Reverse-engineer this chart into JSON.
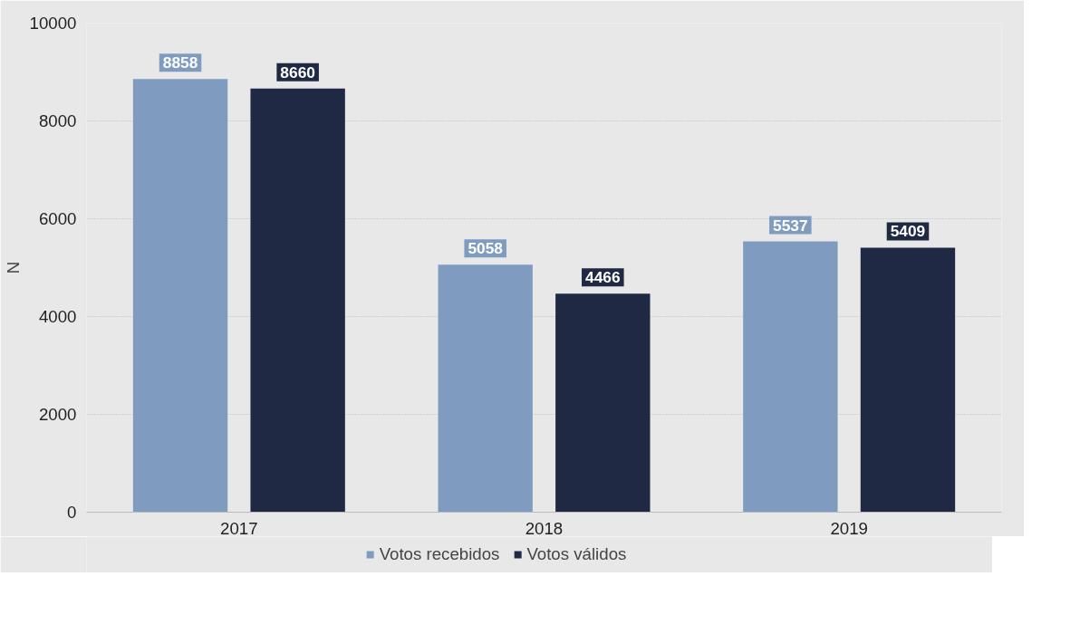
{
  "chart_data": {
    "type": "bar",
    "ylabel": "N",
    "categories": [
      "2017",
      "2018",
      "2019"
    ],
    "series": [
      {
        "name": "Votos recebidos",
        "color": "#7f9cc0",
        "values": [
          8858,
          5058,
          5537
        ]
      },
      {
        "name": "Votos válidos",
        "color": "#1f2944",
        "values": [
          8660,
          4466,
          5409
        ]
      }
    ],
    "ylim": [
      0,
      10000
    ],
    "yticks": [
      0,
      2000,
      4000,
      6000,
      8000,
      10000
    ],
    "grid": "y",
    "legend": "bottom",
    "data_labels": true
  }
}
